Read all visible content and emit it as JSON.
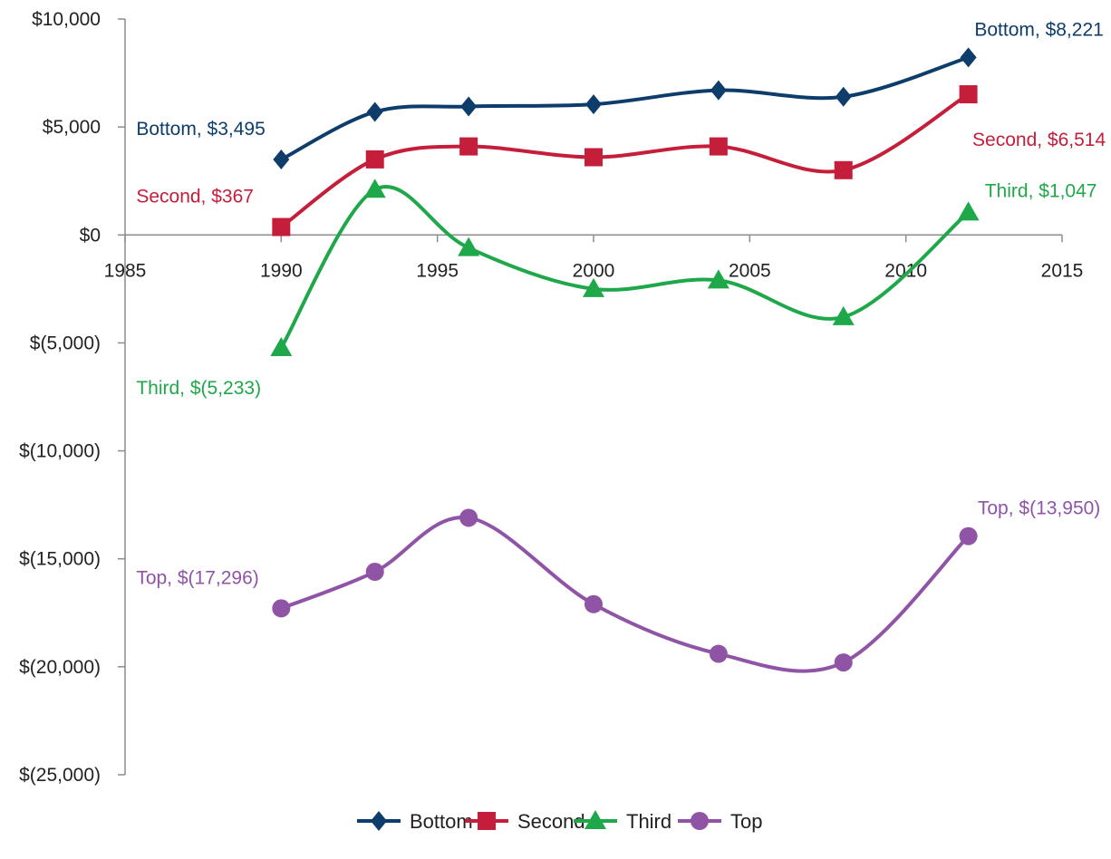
{
  "chart_data": {
    "type": "line",
    "title": "",
    "xlabel": "",
    "ylabel": "",
    "x": [
      1990,
      1993,
      1996,
      2000,
      2004,
      2008,
      2012
    ],
    "xlim": [
      1985,
      2015
    ],
    "ylim": [
      -25000,
      10000
    ],
    "x_ticks": [
      1985,
      1990,
      1995,
      2000,
      2005,
      2010,
      2015
    ],
    "x_tick_labels": [
      "1985",
      "1990",
      "1995",
      "2000",
      "2005",
      "2010",
      "2015"
    ],
    "y_ticks": [
      10000,
      5000,
      0,
      -5000,
      -10000,
      -15000,
      -20000,
      -25000
    ],
    "y_tick_labels": [
      "$10,000",
      "$5,000",
      "$0",
      "$(5,000)",
      "$(10,000)",
      "$(15,000)",
      "$(20,000)",
      "$(25,000)"
    ],
    "grid": false,
    "legend_position": "bottom",
    "smooth": true,
    "series": [
      {
        "name": "Bottom",
        "color": "#0e3d6b",
        "marker": "diamond",
        "values": [
          3495,
          5700,
          5950,
          6050,
          6700,
          6400,
          8221
        ],
        "labels": [
          {
            "index": 0,
            "text": "Bottom, $3,495",
            "placement": "upper-left"
          },
          {
            "index": 6,
            "text": "Bottom, $8,221",
            "placement": "above"
          }
        ]
      },
      {
        "name": "Second",
        "color": "#c41e3a",
        "marker": "square",
        "values": [
          367,
          3500,
          4100,
          3600,
          4100,
          3000,
          6514
        ],
        "labels": [
          {
            "index": 0,
            "text": "Second, $367",
            "placement": "upper-left"
          },
          {
            "index": 6,
            "text": "Second, $6,514",
            "placement": "below-right"
          }
        ]
      },
      {
        "name": "Third",
        "color": "#1fa84a",
        "marker": "triangle",
        "values": [
          -5233,
          2100,
          -600,
          -2500,
          -2100,
          -3800,
          1047
        ],
        "labels": [
          {
            "index": 0,
            "text": "Third, $(5,233)",
            "placement": "below-left"
          },
          {
            "index": 6,
            "text": "Third, $1,047",
            "placement": "above-right"
          }
        ]
      },
      {
        "name": "Top",
        "color": "#9054a6",
        "marker": "circle",
        "values": [
          -17296,
          -15600,
          -13100,
          -17100,
          -19400,
          -19800,
          -13950
        ],
        "labels": [
          {
            "index": 0,
            "text": "Top, $(17,296)",
            "placement": "upper-left"
          },
          {
            "index": 6,
            "text": "Top, $(13,950)",
            "placement": "above"
          }
        ]
      }
    ]
  }
}
